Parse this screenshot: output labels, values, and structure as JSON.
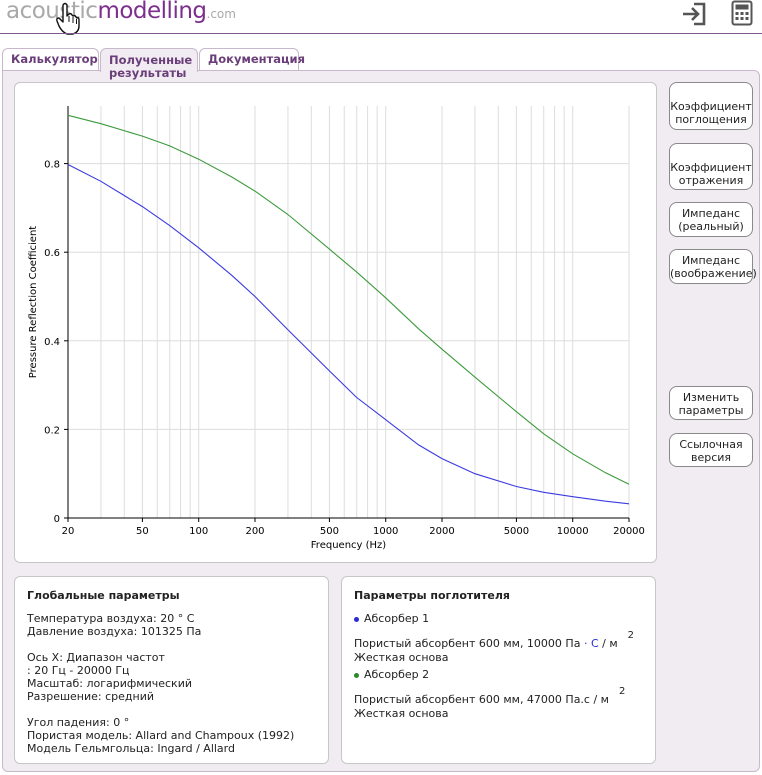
{
  "header": {
    "logo": {
      "part1": "acoustic",
      "part2": "modelling",
      "part3": ".com"
    },
    "login_icon": "sign-in-icon",
    "calculator_icon": "calculator-icon"
  },
  "tabs": [
    {
      "label": "Калькулятор"
    },
    {
      "label": "Полученные результаты"
    },
    {
      "label": "Документация"
    }
  ],
  "side_buttons": [
    {
      "label": "Коэффициент поглощения"
    },
    {
      "label": "Коэффициент отражения"
    },
    {
      "label": "Импеданс (реальный)"
    },
    {
      "label": "Импеданс (воображение)"
    },
    {
      "label": "Изменить параметры"
    },
    {
      "label": "Ссылочная версия"
    }
  ],
  "chart_data": {
    "type": "line",
    "title": "",
    "xlabel": "Frequency (Hz)",
    "ylabel": "Pressure Reflection Coefficient",
    "xscale": "log",
    "xlim": [
      20,
      20000
    ],
    "ylim": [
      0,
      0.93
    ],
    "xticks": [
      20,
      50,
      100,
      200,
      500,
      1000,
      2000,
      5000,
      10000,
      20000
    ],
    "yticks": [
      0,
      0.2,
      0.4,
      0.6,
      0.8
    ],
    "grid": true,
    "legend": "none",
    "series": [
      {
        "color": "#3b3bdf",
        "x": [
          20,
          30,
          50,
          70,
          100,
          150,
          200,
          300,
          500,
          700,
          1000,
          1500,
          2000,
          3000,
          5000,
          7000,
          10000,
          15000,
          20000
        ],
        "y": [
          0.798,
          0.76,
          0.703,
          0.66,
          0.61,
          0.548,
          0.5,
          0.425,
          0.332,
          0.272,
          0.222,
          0.165,
          0.134,
          0.1,
          0.071,
          0.058,
          0.048,
          0.038,
          0.032
        ]
      },
      {
        "color": "#3d9a3d",
        "x": [
          20,
          30,
          50,
          70,
          100,
          150,
          200,
          300,
          500,
          700,
          1000,
          1500,
          2000,
          3000,
          5000,
          7000,
          10000,
          15000,
          20000
        ],
        "y": [
          0.909,
          0.89,
          0.862,
          0.84,
          0.81,
          0.77,
          0.738,
          0.685,
          0.607,
          0.555,
          0.497,
          0.427,
          0.381,
          0.318,
          0.24,
          0.19,
          0.145,
          0.102,
          0.076
        ]
      }
    ]
  },
  "global_params": {
    "title": "Глобальные параметры",
    "temperature": "Температура воздуха: 20 ° C",
    "pressure": "Давление воздуха: 101325 Па",
    "x_axis": "Ось X: Диапазон частот",
    "range": ": 20 Гц - 20000 Гц",
    "scale": "Масштаб: логарифмический",
    "resolution": "Разрешение: средний",
    "angle": "Угол падения: 0 °",
    "porous_model": "Пористая модель: Allard and Champoux (1992)",
    "helmholtz_model": "Модель Гельмгольца: Ingard / Allard"
  },
  "absorber_params": {
    "title": "Параметры поглотителя",
    "absorbers": [
      {
        "name": "Абсорбер 1",
        "dot_color": "#2a2ad8",
        "desc_main": "Пористый абсорбент 600 мм, 10000 Па",
        "desc_dot": "·",
        "desc_unit": "С",
        "desc_tail": "/ м",
        "sup": "2",
        "backing": "Жесткая основа"
      },
      {
        "name": "Абсорбер 2",
        "dot_color": "#2a8a2a",
        "desc_main": "Пористый абсорбент 600 мм, 47000 Па.с / м",
        "sup": "2",
        "backing": "Жесткая основа"
      }
    ]
  }
}
